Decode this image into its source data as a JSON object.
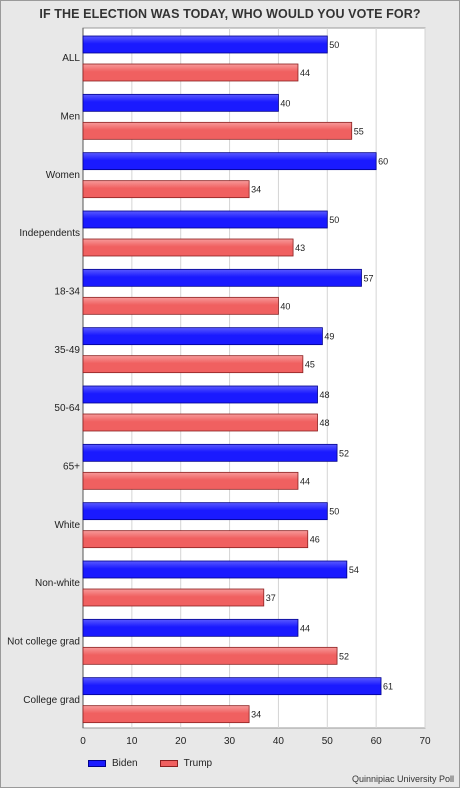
{
  "chart_data": {
    "type": "bar",
    "orientation": "horizontal",
    "title": "IF THE ELECTION WAS TODAY, WHO WOULD YOU VOTE FOR?",
    "categories": [
      "ALL",
      "Men",
      "Women",
      "Independents",
      "18-34",
      "35-49",
      "50-64",
      "65+",
      "White",
      "Non-white",
      "Not college grad",
      "College grad"
    ],
    "series": [
      {
        "name": "Biden",
        "color": "#1a1aff",
        "values": [
          50,
          40,
          60,
          50,
          57,
          49,
          48,
          52,
          50,
          54,
          44,
          61
        ]
      },
      {
        "name": "Trump",
        "color": "#f06060",
        "values": [
          44,
          55,
          34,
          43,
          40,
          45,
          48,
          44,
          46,
          37,
          52,
          34
        ]
      }
    ],
    "xlim": [
      0,
      70
    ],
    "xticks": [
      0,
      10,
      20,
      30,
      40,
      50,
      60,
      70
    ],
    "grid": true,
    "legend_position": "bottom-left",
    "data_labels": true
  },
  "source": "Quinnipiac University Poll"
}
